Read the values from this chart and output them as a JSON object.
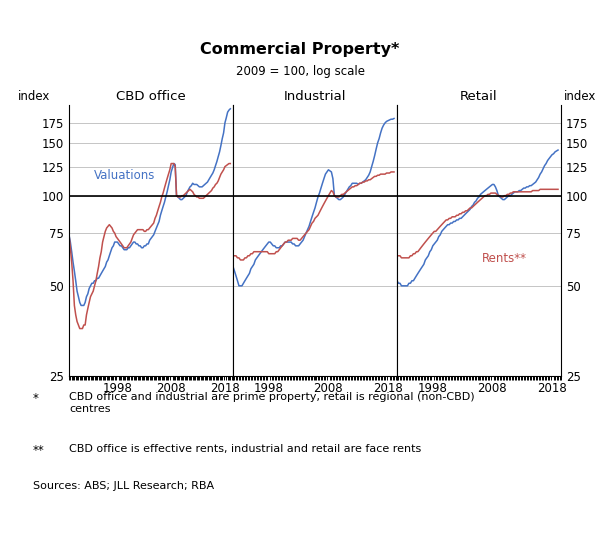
{
  "title": "Commercial Property*",
  "subtitle": "2009 = 100, log scale",
  "ylabel_left": "index",
  "ylabel_right": "index",
  "panel_labels": [
    "CBD office",
    "Industrial",
    "Retail"
  ],
  "yticks": [
    25,
    50,
    75,
    100,
    125,
    150,
    175
  ],
  "ylim": [
    25,
    200
  ],
  "color_val": "#4472C4",
  "color_rent": "#C0504D",
  "panel1_val_x": [
    1989.0,
    1989.25,
    1989.5,
    1989.75,
    1990.0,
    1990.25,
    1990.5,
    1990.75,
    1991.0,
    1991.25,
    1991.5,
    1991.75,
    1992.0,
    1992.25,
    1992.5,
    1992.75,
    1993.0,
    1993.25,
    1993.5,
    1993.75,
    1994.0,
    1994.25,
    1994.5,
    1994.75,
    1995.0,
    1995.25,
    1995.5,
    1995.75,
    1996.0,
    1996.25,
    1996.5,
    1996.75,
    1997.0,
    1997.25,
    1997.5,
    1997.75,
    1998.0,
    1998.25,
    1998.5,
    1998.75,
    1999.0,
    1999.25,
    1999.5,
    1999.75,
    2000.0,
    2000.25,
    2000.5,
    2000.75,
    2001.0,
    2001.25,
    2001.5,
    2001.75,
    2002.0,
    2002.25,
    2002.5,
    2002.75,
    2003.0,
    2003.25,
    2003.5,
    2003.75,
    2004.0,
    2004.25,
    2004.5,
    2004.75,
    2005.0,
    2005.25,
    2005.5,
    2005.75,
    2006.0,
    2006.25,
    2006.5,
    2006.75,
    2007.0,
    2007.25,
    2007.5,
    2007.75,
    2008.0,
    2008.25,
    2008.5,
    2008.75,
    2009.0,
    2009.25,
    2009.5,
    2009.75,
    2010.0,
    2010.25,
    2010.5,
    2010.75,
    2011.0,
    2011.25,
    2011.5,
    2011.75,
    2012.0,
    2012.25,
    2012.5,
    2012.75,
    2013.0,
    2013.25,
    2013.5,
    2013.75,
    2014.0,
    2014.25,
    2014.5,
    2014.75,
    2015.0,
    2015.25,
    2015.5,
    2015.75,
    2016.0,
    2016.25,
    2016.5,
    2016.75,
    2017.0,
    2017.25,
    2017.5,
    2017.75,
    2018.0,
    2018.25,
    2018.5,
    2018.75,
    2019.0
  ],
  "panel1_val_y": [
    74,
    70,
    65,
    60,
    56,
    52,
    48,
    46,
    44,
    43,
    43,
    43,
    44,
    46,
    47,
    49,
    50,
    51,
    51,
    52,
    52,
    53,
    53,
    54,
    55,
    56,
    57,
    58,
    60,
    61,
    63,
    65,
    67,
    68,
    70,
    70,
    70,
    69,
    68,
    68,
    67,
    66,
    66,
    66,
    67,
    67,
    68,
    69,
    70,
    70,
    69,
    69,
    68,
    68,
    67,
    67,
    68,
    68,
    69,
    69,
    71,
    72,
    73,
    74,
    76,
    78,
    80,
    82,
    86,
    89,
    92,
    95,
    99,
    103,
    108,
    113,
    120,
    124,
    128,
    127,
    100,
    99,
    98,
    97,
    97,
    98,
    99,
    100,
    103,
    105,
    107,
    108,
    110,
    109,
    109,
    109,
    108,
    107,
    107,
    107,
    108,
    109,
    110,
    111,
    113,
    115,
    117,
    119,
    122,
    126,
    130,
    135,
    140,
    147,
    155,
    162,
    175,
    182,
    190,
    193,
    195
  ],
  "panel1_rent_x": [
    1989.0,
    1989.25,
    1989.5,
    1989.75,
    1990.0,
    1990.25,
    1990.5,
    1990.75,
    1991.0,
    1991.25,
    1991.5,
    1991.75,
    1992.0,
    1992.25,
    1992.5,
    1992.75,
    1993.0,
    1993.25,
    1993.5,
    1993.75,
    1994.0,
    1994.25,
    1994.5,
    1994.75,
    1995.0,
    1995.25,
    1995.5,
    1995.75,
    1996.0,
    1996.25,
    1996.5,
    1996.75,
    1997.0,
    1997.25,
    1997.5,
    1997.75,
    1998.0,
    1998.25,
    1998.5,
    1998.75,
    1999.0,
    1999.25,
    1999.5,
    1999.75,
    2000.0,
    2000.25,
    2000.5,
    2000.75,
    2001.0,
    2001.25,
    2001.5,
    2001.75,
    2002.0,
    2002.25,
    2002.5,
    2002.75,
    2003.0,
    2003.25,
    2003.5,
    2003.75,
    2004.0,
    2004.25,
    2004.5,
    2004.75,
    2005.0,
    2005.25,
    2005.5,
    2005.75,
    2006.0,
    2006.25,
    2006.5,
    2006.75,
    2007.0,
    2007.25,
    2007.5,
    2007.75,
    2008.0,
    2008.25,
    2008.5,
    2008.75,
    2009.0,
    2009.25,
    2009.5,
    2009.75,
    2010.0,
    2010.25,
    2010.5,
    2010.75,
    2011.0,
    2011.25,
    2011.5,
    2011.75,
    2012.0,
    2012.25,
    2012.5,
    2012.75,
    2013.0,
    2013.25,
    2013.5,
    2013.75,
    2014.0,
    2014.25,
    2014.5,
    2014.75,
    2015.0,
    2015.25,
    2015.5,
    2015.75,
    2016.0,
    2016.25,
    2016.5,
    2016.75,
    2017.0,
    2017.25,
    2017.5,
    2017.75,
    2018.0,
    2018.25,
    2018.5,
    2018.75,
    2019.0
  ],
  "panel1_rent_y": [
    74,
    67,
    60,
    52,
    43,
    40,
    38,
    37,
    36,
    36,
    36,
    37,
    37,
    40,
    42,
    44,
    46,
    47,
    48,
    50,
    52,
    55,
    58,
    62,
    65,
    70,
    73,
    76,
    78,
    79,
    80,
    79,
    78,
    76,
    75,
    73,
    72,
    71,
    70,
    69,
    68,
    67,
    67,
    67,
    68,
    69,
    70,
    72,
    74,
    75,
    76,
    77,
    77,
    77,
    77,
    77,
    76,
    76,
    77,
    77,
    78,
    79,
    80,
    81,
    84,
    86,
    89,
    92,
    95,
    99,
    102,
    106,
    110,
    114,
    118,
    122,
    128,
    128,
    128,
    125,
    100,
    99,
    99,
    99,
    100,
    100,
    101,
    102,
    103,
    104,
    105,
    104,
    103,
    101,
    100,
    99,
    99,
    98,
    98,
    98,
    98,
    99,
    100,
    101,
    102,
    103,
    104,
    106,
    107,
    109,
    110,
    112,
    115,
    118,
    120,
    122,
    125,
    126,
    127,
    128,
    128
  ],
  "panel2_val_x": [
    1992.0,
    1992.25,
    1992.5,
    1992.75,
    1993.0,
    1993.25,
    1993.5,
    1993.75,
    1994.0,
    1994.25,
    1994.5,
    1994.75,
    1995.0,
    1995.25,
    1995.5,
    1995.75,
    1996.0,
    1996.25,
    1996.5,
    1996.75,
    1997.0,
    1997.25,
    1997.5,
    1997.75,
    1998.0,
    1998.25,
    1998.5,
    1998.75,
    1999.0,
    1999.25,
    1999.5,
    1999.75,
    2000.0,
    2000.25,
    2000.5,
    2000.75,
    2001.0,
    2001.25,
    2001.5,
    2001.75,
    2002.0,
    2002.25,
    2002.5,
    2002.75,
    2003.0,
    2003.25,
    2003.5,
    2003.75,
    2004.0,
    2004.25,
    2004.5,
    2004.75,
    2005.0,
    2005.25,
    2005.5,
    2005.75,
    2006.0,
    2006.25,
    2006.5,
    2006.75,
    2007.0,
    2007.25,
    2007.5,
    2007.75,
    2008.0,
    2008.25,
    2008.5,
    2008.75,
    2009.0,
    2009.25,
    2009.5,
    2009.75,
    2010.0,
    2010.25,
    2010.5,
    2010.75,
    2011.0,
    2011.25,
    2011.5,
    2011.75,
    2012.0,
    2012.25,
    2012.5,
    2012.75,
    2013.0,
    2013.25,
    2013.5,
    2013.75,
    2014.0,
    2014.25,
    2014.5,
    2014.75,
    2015.0,
    2015.25,
    2015.5,
    2015.75,
    2016.0,
    2016.25,
    2016.5,
    2016.75,
    2017.0,
    2017.25,
    2017.5,
    2017.75,
    2018.0,
    2018.25,
    2018.5,
    2018.75,
    2019.0
  ],
  "panel2_val_y": [
    58,
    56,
    54,
    52,
    50,
    50,
    50,
    51,
    52,
    53,
    54,
    55,
    57,
    58,
    59,
    61,
    62,
    63,
    64,
    65,
    66,
    67,
    68,
    69,
    70,
    70,
    69,
    68,
    68,
    67,
    67,
    67,
    68,
    68,
    69,
    70,
    70,
    70,
    70,
    70,
    69,
    69,
    68,
    68,
    68,
    69,
    70,
    71,
    73,
    75,
    77,
    79,
    82,
    85,
    88,
    91,
    95,
    99,
    102,
    106,
    110,
    114,
    118,
    120,
    122,
    121,
    120,
    114,
    100,
    99,
    98,
    97,
    97,
    98,
    99,
    101,
    103,
    105,
    107,
    108,
    110,
    110,
    110,
    110,
    109,
    110,
    110,
    111,
    112,
    113,
    115,
    117,
    120,
    125,
    130,
    136,
    143,
    150,
    155,
    162,
    168,
    172,
    175,
    177,
    178,
    179,
    180,
    180,
    181
  ],
  "panel2_rent_x": [
    1992.0,
    1992.25,
    1992.5,
    1992.75,
    1993.0,
    1993.25,
    1993.5,
    1993.75,
    1994.0,
    1994.25,
    1994.5,
    1994.75,
    1995.0,
    1995.25,
    1995.5,
    1995.75,
    1996.0,
    1996.25,
    1996.5,
    1996.75,
    1997.0,
    1997.25,
    1997.5,
    1997.75,
    1998.0,
    1998.25,
    1998.5,
    1998.75,
    1999.0,
    1999.25,
    1999.5,
    1999.75,
    2000.0,
    2000.25,
    2000.5,
    2000.75,
    2001.0,
    2001.25,
    2001.5,
    2001.75,
    2002.0,
    2002.25,
    2002.5,
    2002.75,
    2003.0,
    2003.25,
    2003.5,
    2003.75,
    2004.0,
    2004.25,
    2004.5,
    2004.75,
    2005.0,
    2005.25,
    2005.5,
    2005.75,
    2006.0,
    2006.25,
    2006.5,
    2006.75,
    2007.0,
    2007.25,
    2007.5,
    2007.75,
    2008.0,
    2008.25,
    2008.5,
    2008.75,
    2009.0,
    2009.25,
    2009.5,
    2009.75,
    2010.0,
    2010.25,
    2010.5,
    2010.75,
    2011.0,
    2011.25,
    2011.5,
    2011.75,
    2012.0,
    2012.25,
    2012.5,
    2012.75,
    2013.0,
    2013.25,
    2013.5,
    2013.75,
    2014.0,
    2014.25,
    2014.5,
    2014.75,
    2015.0,
    2015.25,
    2015.5,
    2015.75,
    2016.0,
    2016.25,
    2016.5,
    2016.75,
    2017.0,
    2017.25,
    2017.5,
    2017.75,
    2018.0,
    2018.25,
    2018.5,
    2018.75,
    2019.0
  ],
  "panel2_rent_y": [
    63,
    63,
    63,
    62,
    62,
    61,
    61,
    61,
    62,
    62,
    63,
    63,
    64,
    64,
    65,
    65,
    65,
    65,
    65,
    65,
    65,
    65,
    65,
    65,
    64,
    64,
    64,
    64,
    64,
    65,
    65,
    66,
    67,
    68,
    69,
    70,
    70,
    71,
    71,
    71,
    72,
    72,
    72,
    72,
    71,
    71,
    72,
    73,
    74,
    75,
    76,
    77,
    79,
    81,
    82,
    84,
    85,
    86,
    88,
    90,
    92,
    94,
    96,
    98,
    100,
    102,
    104,
    103,
    100,
    99,
    99,
    99,
    100,
    101,
    101,
    102,
    103,
    104,
    105,
    106,
    107,
    107,
    108,
    108,
    109,
    110,
    110,
    111,
    111,
    112,
    112,
    113,
    113,
    114,
    115,
    116,
    116,
    117,
    117,
    118,
    118,
    118,
    118,
    119,
    119,
    119,
    120,
    120,
    120
  ],
  "panel3_val_x": [
    1992.0,
    1992.25,
    1992.5,
    1992.75,
    1993.0,
    1993.25,
    1993.5,
    1993.75,
    1994.0,
    1994.25,
    1994.5,
    1994.75,
    1995.0,
    1995.25,
    1995.5,
    1995.75,
    1996.0,
    1996.25,
    1996.5,
    1996.75,
    1997.0,
    1997.25,
    1997.5,
    1997.75,
    1998.0,
    1998.25,
    1998.5,
    1998.75,
    1999.0,
    1999.25,
    1999.5,
    1999.75,
    2000.0,
    2000.25,
    2000.5,
    2000.75,
    2001.0,
    2001.25,
    2001.5,
    2001.75,
    2002.0,
    2002.25,
    2002.5,
    2002.75,
    2003.0,
    2003.25,
    2003.5,
    2003.75,
    2004.0,
    2004.25,
    2004.5,
    2004.75,
    2005.0,
    2005.25,
    2005.5,
    2005.75,
    2006.0,
    2006.25,
    2006.5,
    2006.75,
    2007.0,
    2007.25,
    2007.5,
    2007.75,
    2008.0,
    2008.25,
    2008.5,
    2008.75,
    2009.0,
    2009.25,
    2009.5,
    2009.75,
    2010.0,
    2010.25,
    2010.5,
    2010.75,
    2011.0,
    2011.25,
    2011.5,
    2011.75,
    2012.0,
    2012.25,
    2012.5,
    2012.75,
    2013.0,
    2013.25,
    2013.5,
    2013.75,
    2014.0,
    2014.25,
    2014.5,
    2014.75,
    2015.0,
    2015.25,
    2015.5,
    2015.75,
    2016.0,
    2016.25,
    2016.5,
    2016.75,
    2017.0,
    2017.25,
    2017.5,
    2017.75,
    2018.0,
    2018.25,
    2018.5,
    2018.75,
    2019.0
  ],
  "panel3_val_y": [
    52,
    51,
    51,
    50,
    50,
    50,
    50,
    50,
    51,
    51,
    52,
    52,
    53,
    54,
    55,
    56,
    57,
    58,
    59,
    61,
    62,
    63,
    65,
    66,
    68,
    69,
    70,
    71,
    73,
    74,
    76,
    77,
    78,
    79,
    80,
    80,
    81,
    81,
    82,
    82,
    83,
    83,
    84,
    84,
    85,
    86,
    87,
    88,
    89,
    90,
    92,
    93,
    95,
    96,
    98,
    99,
    101,
    102,
    103,
    104,
    105,
    106,
    107,
    108,
    109,
    109,
    107,
    104,
    100,
    99,
    98,
    97,
    97,
    98,
    99,
    100,
    100,
    101,
    102,
    103,
    103,
    103,
    104,
    104,
    105,
    106,
    106,
    107,
    107,
    108,
    108,
    109,
    110,
    111,
    113,
    115,
    118,
    120,
    123,
    126,
    128,
    131,
    133,
    135,
    137,
    138,
    140,
    141,
    142
  ],
  "panel3_rent_x": [
    1992.0,
    1992.25,
    1992.5,
    1992.75,
    1993.0,
    1993.25,
    1993.5,
    1993.75,
    1994.0,
    1994.25,
    1994.5,
    1994.75,
    1995.0,
    1995.25,
    1995.5,
    1995.75,
    1996.0,
    1996.25,
    1996.5,
    1996.75,
    1997.0,
    1997.25,
    1997.5,
    1997.75,
    1998.0,
    1998.25,
    1998.5,
    1998.75,
    1999.0,
    1999.25,
    1999.5,
    1999.75,
    2000.0,
    2000.25,
    2000.5,
    2000.75,
    2001.0,
    2001.25,
    2001.5,
    2001.75,
    2002.0,
    2002.25,
    2002.5,
    2002.75,
    2003.0,
    2003.25,
    2003.5,
    2003.75,
    2004.0,
    2004.25,
    2004.5,
    2004.75,
    2005.0,
    2005.25,
    2005.5,
    2005.75,
    2006.0,
    2006.25,
    2006.5,
    2006.75,
    2007.0,
    2007.25,
    2007.5,
    2007.75,
    2008.0,
    2008.25,
    2008.5,
    2008.75,
    2009.0,
    2009.25,
    2009.5,
    2009.75,
    2010.0,
    2010.25,
    2010.5,
    2010.75,
    2011.0,
    2011.25,
    2011.5,
    2011.75,
    2012.0,
    2012.25,
    2012.5,
    2012.75,
    2013.0,
    2013.25,
    2013.5,
    2013.75,
    2014.0,
    2014.25,
    2014.5,
    2014.75,
    2015.0,
    2015.25,
    2015.5,
    2015.75,
    2016.0,
    2016.25,
    2016.5,
    2016.75,
    2017.0,
    2017.25,
    2017.5,
    2017.75,
    2018.0,
    2018.25,
    2018.5,
    2018.75,
    2019.0
  ],
  "panel3_rent_y": [
    63,
    63,
    63,
    62,
    62,
    62,
    62,
    62,
    62,
    63,
    63,
    64,
    64,
    65,
    65,
    66,
    67,
    68,
    69,
    70,
    71,
    72,
    73,
    74,
    75,
    76,
    76,
    77,
    78,
    79,
    80,
    81,
    82,
    83,
    83,
    84,
    84,
    85,
    85,
    85,
    86,
    86,
    87,
    87,
    88,
    88,
    89,
    89,
    90,
    91,
    91,
    92,
    93,
    94,
    95,
    96,
    97,
    98,
    99,
    100,
    100,
    101,
    101,
    102,
    102,
    102,
    102,
    101,
    100,
    100,
    99,
    99,
    100,
    100,
    101,
    101,
    102,
    102,
    103,
    103,
    103,
    103,
    103,
    103,
    103,
    103,
    103,
    103,
    103,
    103,
    103,
    104,
    104,
    104,
    104,
    104,
    105,
    105,
    105,
    105,
    105,
    105,
    105,
    105,
    105,
    105,
    105,
    105,
    105
  ]
}
